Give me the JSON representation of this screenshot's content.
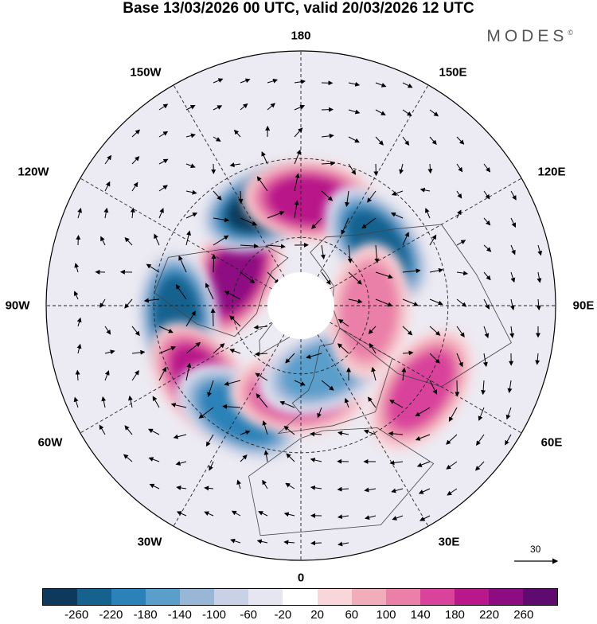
{
  "title": "Base 13/03/2026 00 UTC, valid 20/03/2026 12 UTC",
  "brand": {
    "name": "MODES",
    "mark": "©"
  },
  "longitude_labels": {
    "n180": "180",
    "w150": "150W",
    "e150": "150E",
    "w120": "120W",
    "e120": "120E",
    "w90": "90W",
    "e90": "90E",
    "w60": "60W",
    "e60": "60E",
    "w30": "30W",
    "e30": "30E",
    "s0": "0"
  },
  "reference_vector": {
    "value": "30"
  },
  "colorbar": {
    "colors": [
      "#0d3a5c",
      "#15628f",
      "#2a82b8",
      "#5a9ecb",
      "#98b6d6",
      "#c8d1e6",
      "#e6e6f0",
      "#ffffff",
      "#f9d6da",
      "#f2adbb",
      "#ea7fa8",
      "#d9439b",
      "#b81889",
      "#8e0c82",
      "#5e0a6e"
    ],
    "ticks": [
      "-260",
      "-220",
      "-180",
      "-140",
      "-100",
      "-60",
      "-20",
      "20",
      "60",
      "100",
      "140",
      "180",
      "220",
      "260"
    ]
  },
  "anomaly_centers": [
    {
      "name": "pink-northwest-canada",
      "lon": -115,
      "lat": 58,
      "value": 250
    },
    {
      "name": "blue-north-atlantic-west",
      "lon": -85,
      "lat": 38,
      "value": -250
    },
    {
      "name": "pink-atlantic-60w",
      "lon": -52,
      "lat": 38,
      "value": 210
    },
    {
      "name": "blue-atlantic-30w",
      "lon": -30,
      "lat": 38,
      "value": -200
    },
    {
      "name": "pink-europe",
      "lon": -2,
      "lat": 52,
      "value": 150
    },
    {
      "name": "blue-scandinavia",
      "lon": 20,
      "lat": 60,
      "value": -160
    },
    {
      "name": "blue-bering",
      "lon": -160,
      "lat": 45,
      "value": -260
    },
    {
      "name": "pink-north-pacific",
      "lon": 175,
      "lat": 45,
      "value": 200
    },
    {
      "name": "blue-east-siberia",
      "lon": 128,
      "lat": 48,
      "value": -220
    },
    {
      "name": "pink-central-siberia",
      "lon": 85,
      "lat": 60,
      "value": 110
    },
    {
      "name": "pink-central-asia",
      "lon": 55,
      "lat": 30,
      "value": 140
    }
  ]
}
